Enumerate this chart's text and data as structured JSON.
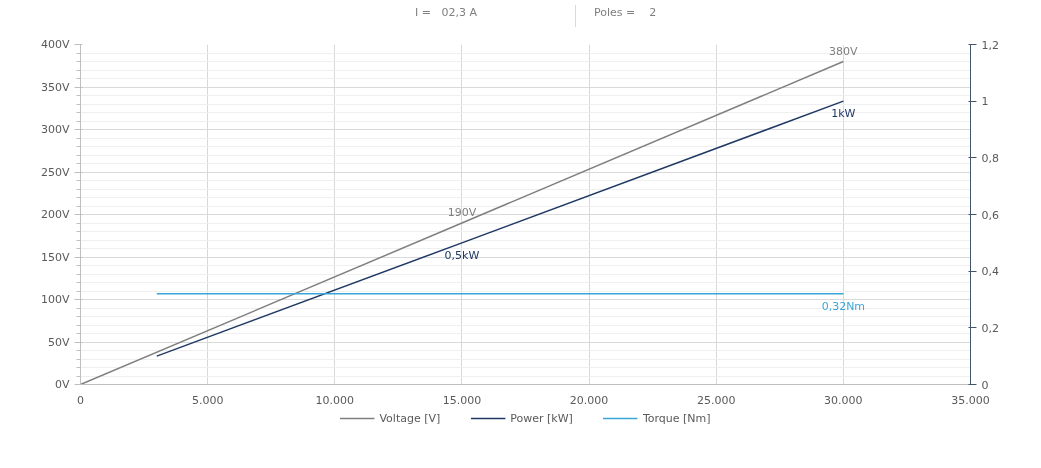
{
  "chart_data": {
    "type": "line",
    "annotations": [
      "I =   02,3 A",
      "Poles =    2"
    ],
    "xlim": [
      0,
      35000
    ],
    "xticks": [
      0,
      {
        "value": 5000,
        "label": "5.000"
      },
      {
        "value": 10000,
        "label": "10.000"
      },
      {
        "value": 15000,
        "label": "15.000"
      },
      {
        "value": 20000,
        "label": "20.000"
      },
      {
        "value": 25000,
        "label": "25.000"
      },
      {
        "value": 30000,
        "label": "30.000"
      },
      {
        "value": 35000,
        "label": "35.000"
      }
    ],
    "ylim": [
      0,
      400
    ],
    "yticks": [
      {
        "value": 0,
        "label": "0V"
      },
      {
        "value": 50,
        "label": "50V"
      },
      {
        "value": 100,
        "label": "100V"
      },
      {
        "value": 150,
        "label": "150V"
      },
      {
        "value": 200,
        "label": "200V"
      },
      {
        "value": 250,
        "label": "250V"
      },
      {
        "value": 300,
        "label": "300V"
      },
      {
        "value": 350,
        "label": "350V"
      },
      {
        "value": 400,
        "label": "400V"
      }
    ],
    "y2lim": [
      0,
      1.2
    ],
    "y2ticks": [
      0,
      {
        "value": 0.2,
        "label": "0,2"
      },
      {
        "value": 0.4,
        "label": "0,4"
      },
      {
        "value": 0.6,
        "label": "0,6"
      },
      {
        "value": 0.8,
        "label": "0,8"
      },
      1,
      {
        "value": 1.2,
        "label": "1,2"
      }
    ],
    "grid": true,
    "legend": "bottom",
    "series": [
      {
        "name": "Voltage [V]",
        "color": "#7f7f7f",
        "x": [
          0,
          15000,
          30000
        ],
        "values": [
          0,
          190,
          380
        ],
        "value_labels": [
          null,
          "190V",
          "380V"
        ]
      },
      {
        "name": "Power [kW]",
        "color": "#1f3864",
        "axis": "y2",
        "x": [
          3000,
          15000,
          30000
        ],
        "values": [
          0.1,
          0.5,
          1.0
        ],
        "value_labels": [
          null,
          "0,5kW",
          "1kW"
        ]
      },
      {
        "name": "Torque [Nm]",
        "color": "#3aa6d8",
        "axis": "y2",
        "x": [
          3000,
          30000
        ],
        "values": [
          0.32,
          0.32
        ],
        "value_labels": [
          null,
          "0,32Nm"
        ]
      }
    ]
  }
}
